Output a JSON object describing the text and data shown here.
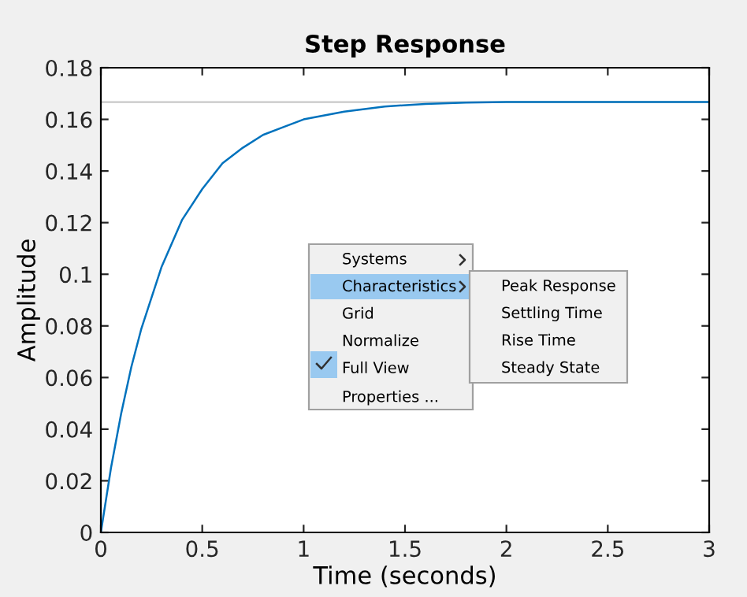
{
  "chart_data": {
    "type": "line",
    "title": "Step Response",
    "xlabel": "Time (seconds)",
    "ylabel": "Amplitude",
    "x": [
      0,
      0.05,
      0.1,
      0.15,
      0.2,
      0.3,
      0.4,
      0.5,
      0.6,
      0.7,
      0.8,
      0.9,
      1.0,
      1.2,
      1.4,
      1.6,
      1.8,
      2.0,
      2.5,
      3.0
    ],
    "series": [
      {
        "color": "#0072bd",
        "values": [
          0,
          0.025,
          0.046,
          0.064,
          0.079,
          0.103,
          0.121,
          0.133,
          0.143,
          0.149,
          0.154,
          0.157,
          0.16,
          0.163,
          0.165,
          0.166,
          0.1665,
          0.1667,
          0.1667,
          0.1667
        ]
      }
    ],
    "xlim": [
      0,
      3
    ],
    "xticks": [
      0,
      0.5,
      1,
      1.5,
      2,
      2.5,
      3
    ],
    "ylim": [
      0,
      0.18
    ],
    "yticks": [
      0,
      0.02,
      0.04,
      0.06,
      0.08,
      0.1,
      0.12,
      0.14,
      0.16,
      0.18
    ],
    "ref_lines": [
      {
        "axis": "y",
        "value": 0.1667,
        "color": "#c8c8c8",
        "line_style": "solid"
      }
    ],
    "grid": false,
    "line_style": "solid",
    "marker": "none",
    "annotations": [
      "Systems",
      "Characteristics",
      "Grid",
      "Normalize",
      "Full View",
      "Properties ...",
      "Peak Response",
      "Settling Time",
      "Rise Time",
      "Steady State"
    ]
  }
}
